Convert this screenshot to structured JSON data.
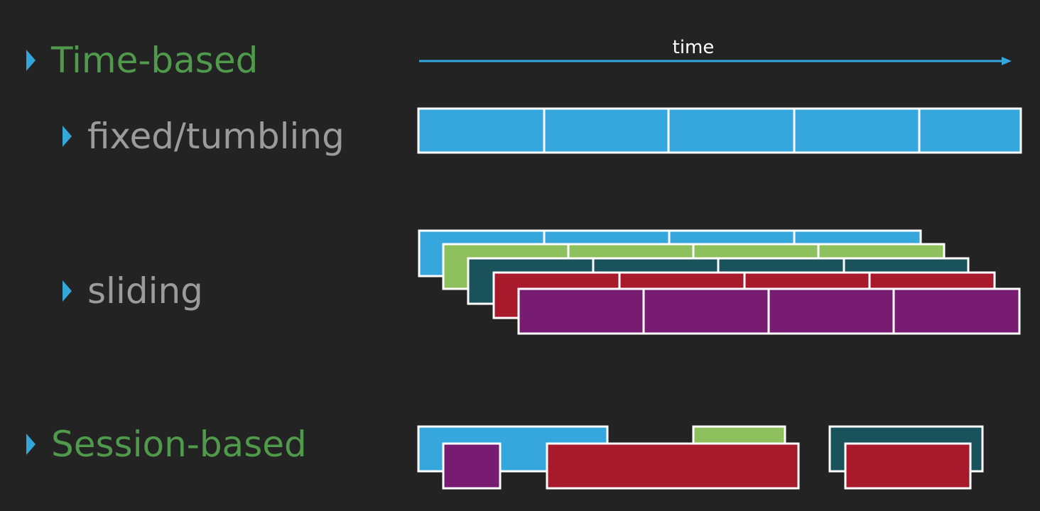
{
  "bullets": {
    "time_based": "Time-based",
    "fixed": "fixed/tumbling",
    "sliding": "sliding",
    "session_based": "Session-based"
  },
  "axis": {
    "label": "time"
  },
  "colors": {
    "background": "#232323",
    "accent_blue": "#35a7dc",
    "green": "#8fc05e",
    "teal": "#1a525b",
    "red": "#a8192c",
    "purple": "#771c70",
    "heading_green": "#4f9a4b",
    "subitem_gray": "#9b9b9b"
  }
}
